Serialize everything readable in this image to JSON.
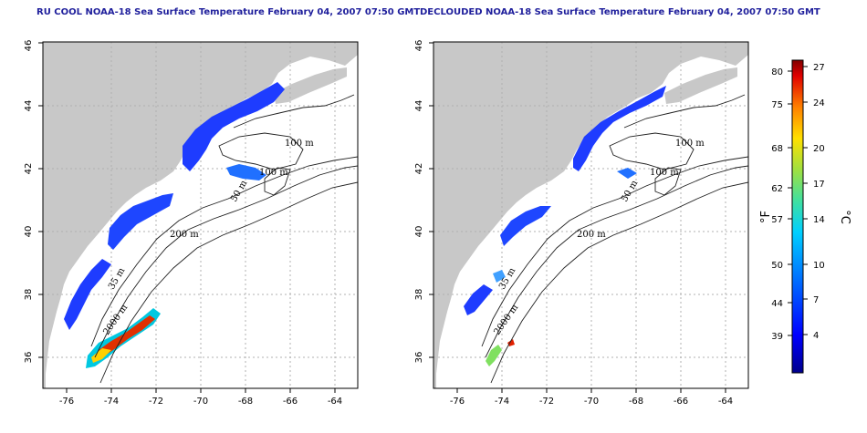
{
  "panels": [
    {
      "id": "left",
      "title": "RU COOL NOAA-18 Sea Surface Temperature February 04, 2007 07:50 GMT",
      "contour_labels": [
        "100 m",
        "100 m",
        "50 m",
        "200 m",
        "35 m",
        "2000 m"
      ]
    },
    {
      "id": "right",
      "title": "DECLOUDED NOAA-18 Sea Surface Temperature February 04, 2007 07:50 GMT",
      "contour_labels": [
        "100 m",
        "100 m",
        "50 m",
        "200 m",
        "35 m",
        "2000 m"
      ]
    }
  ],
  "axes": {
    "x_ticks": [
      "-76",
      "-74",
      "-72",
      "-70",
      "-68",
      "-66",
      "-64"
    ],
    "y_ticks": [
      "36",
      "38",
      "40",
      "42",
      "44",
      "46"
    ]
  },
  "colorbar": {
    "f_unit": "°F",
    "c_unit": "°C",
    "f_ticks": [
      "80",
      "75",
      "68",
      "62",
      "57",
      "50",
      "44",
      "39"
    ],
    "c_ticks": [
      "27",
      "24",
      "20",
      "17",
      "14",
      "10",
      "7",
      "4"
    ]
  },
  "colors": {
    "land": "#c8c8c8",
    "title": "#1f1f9c",
    "sst_cold": "#1e3cff",
    "sst_warm": "#ff0000"
  }
}
